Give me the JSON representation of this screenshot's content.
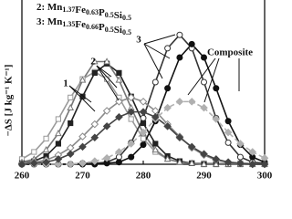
{
  "chart_data": {
    "type": "line",
    "legend_entries": [
      {
        "label": "2: ",
        "elements": [
          [
            "Mn",
            "1.37"
          ],
          [
            "Fe",
            "0.63"
          ],
          [
            "P",
            "0.5"
          ],
          [
            "Si",
            "0.5"
          ]
        ]
      },
      {
        "label": "3: ",
        "elements": [
          [
            "Mn",
            "1.35"
          ],
          [
            "Fe",
            "0.66"
          ],
          [
            "P",
            "0.5"
          ],
          [
            "Si",
            "0.5"
          ]
        ]
      }
    ],
    "y_label": "−ΔS [J kg⁻¹ K⁻¹]",
    "annotations": [
      "1",
      "2",
      "3",
      "Composite"
    ],
    "x": [
      260,
      262,
      264,
      266,
      268,
      270,
      272,
      274,
      276,
      278,
      280,
      282,
      284,
      286,
      288,
      290,
      292,
      294,
      296,
      298,
      300
    ],
    "xlim": [
      260,
      300
    ],
    "xticks": [
      260,
      270,
      280,
      290,
      300
    ],
    "ylim": [
      0,
      16
    ],
    "series": [
      {
        "color": "#9a9a9a",
        "marker": "square",
        "filled": false,
        "dashed": false,
        "values": [
          0.5,
          1.2,
          2.5,
          4.4,
          6.5,
          8.3,
          9.0,
          8.3,
          6.5,
          4.4,
          2.5,
          1.2,
          0.5,
          0.2,
          0.1,
          0.1,
          0.1,
          0.1,
          0.1,
          0.1,
          0.1
        ]
      },
      {
        "color": "#222222",
        "marker": "square",
        "filled": true,
        "dashed": false,
        "values": [
          0.1,
          0.3,
          0.8,
          2.0,
          4.0,
          6.6,
          8.9,
          9.8,
          8.9,
          6.6,
          4.0,
          2.0,
          0.8,
          0.3,
          0.1,
          0,
          0,
          0,
          0,
          0,
          0
        ]
      },
      {
        "color": "#777777",
        "marker": "triangle",
        "filled": false,
        "dashed": false,
        "values": [
          0.2,
          0.5,
          1.4,
          3.0,
          5.5,
          8.2,
          10.0,
          10.0,
          8.2,
          5.5,
          3.0,
          1.4,
          0.5,
          0.2,
          0.1,
          0,
          0,
          0,
          0,
          0,
          0
        ]
      },
      {
        "color": "#333333",
        "marker": "circle",
        "filled": false,
        "dashed": false,
        "values": [
          0,
          0,
          0,
          0,
          0,
          0.1,
          0.1,
          0.2,
          0.7,
          2.1,
          4.5,
          8.0,
          11.3,
          12.6,
          11.3,
          8.0,
          4.5,
          2.1,
          0.7,
          0.2,
          0.1
        ]
      },
      {
        "color": "#111111",
        "marker": "circle",
        "filled": true,
        "dashed": false,
        "values": [
          0,
          0,
          0,
          0,
          0,
          0,
          0,
          0.1,
          0.2,
          0.7,
          1.9,
          4.2,
          7.4,
          10.4,
          11.7,
          10.4,
          7.4,
          4.2,
          1.9,
          0.7,
          0.2
        ]
      },
      {
        "color": "#8a8a8a",
        "marker": "diamond",
        "filled": false,
        "dashed": false,
        "values": [
          0.1,
          0.2,
          0.4,
          0.9,
          1.6,
          2.7,
          3.9,
          5.2,
          6.1,
          6.5,
          6.1,
          5.2,
          3.9,
          2.7,
          1.6,
          0.9,
          0.4,
          0.2,
          0.1,
          0,
          0
        ]
      },
      {
        "color": "#b0b0b0",
        "marker": "diamond",
        "filled": true,
        "dashed": true,
        "values": [
          0,
          0,
          0,
          0,
          0,
          0.1,
          0.3,
          0.6,
          1.2,
          2.0,
          3.1,
          4.4,
          5.5,
          6.1,
          6.1,
          5.5,
          4.4,
          3.1,
          2.0,
          1.2,
          0.6
        ]
      },
      {
        "color": "#444444",
        "marker": "diamond",
        "filled": true,
        "dashed": false,
        "values": [
          0,
          0.1,
          0.2,
          0.5,
          1.0,
          1.7,
          2.6,
          3.7,
          4.6,
          5.1,
          5.1,
          4.6,
          3.7,
          2.6,
          1.7,
          1.0,
          0.5,
          0.2,
          0.1,
          0,
          0
        ]
      }
    ]
  }
}
